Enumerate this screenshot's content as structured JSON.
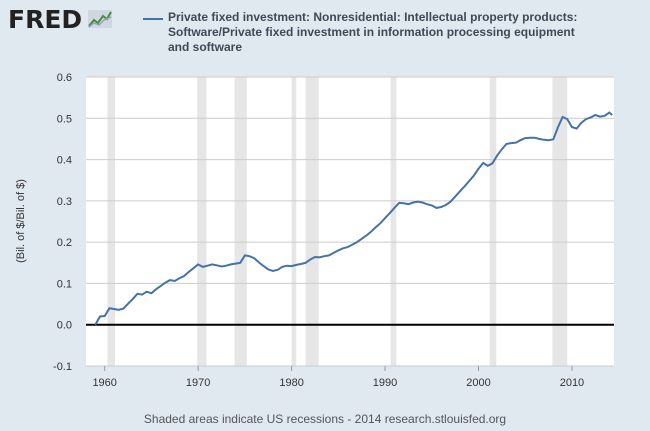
{
  "header": {
    "logo_text": "FRED"
  },
  "footer": {
    "text": "Shaded areas indicate US recessions - 2014 research.stlouisfed.org"
  },
  "colors": {
    "series": "#4572a7",
    "recession": "#e6e6e6",
    "background": "#e1e9f0"
  },
  "chart_data": {
    "type": "line",
    "title": "",
    "xlabel": "",
    "ylabel": "(Bil. of $/Bil. of $)",
    "xlim": [
      1958,
      2014.5
    ],
    "ylim": [
      -0.1,
      0.6
    ],
    "yticks": [
      -0.1,
      0.0,
      0.1,
      0.2,
      0.3,
      0.4,
      0.5,
      0.6
    ],
    "ytick_labels": [
      "-0.1",
      "0.0",
      "0.1",
      "0.2",
      "0.3",
      "0.4",
      "0.5",
      "0.6"
    ],
    "xticks": [
      1960,
      1970,
      1980,
      1990,
      2000,
      2010
    ],
    "xtick_labels": [
      "1960",
      "1970",
      "1980",
      "1990",
      "2000",
      "2010"
    ],
    "grid": true,
    "zero_line": true,
    "legend_position": "top",
    "recessions": [
      [
        1960.3,
        1961.1
      ],
      [
        1969.9,
        1970.9
      ],
      [
        1973.9,
        1975.2
      ],
      [
        1980.0,
        1980.5
      ],
      [
        1981.5,
        1982.9
      ],
      [
        1990.6,
        1991.2
      ],
      [
        2001.2,
        2001.9
      ],
      [
        2007.9,
        2009.5
      ]
    ],
    "series": [
      {
        "name": "Private fixed investment: Nonresidential: Intellectual property products: Software/Private fixed investment in information processing equipment and software",
        "x": [
          1959.0,
          1959.5,
          1960.0,
          1960.5,
          1961.0,
          1961.5,
          1962.0,
          1962.5,
          1963.0,
          1963.5,
          1964.0,
          1964.5,
          1965.0,
          1965.5,
          1966.0,
          1966.5,
          1967.0,
          1967.5,
          1968.0,
          1968.5,
          1969.0,
          1969.5,
          1970.0,
          1970.5,
          1971.0,
          1971.5,
          1972.0,
          1972.5,
          1973.0,
          1973.5,
          1974.0,
          1974.5,
          1975.0,
          1975.5,
          1976.0,
          1976.5,
          1977.0,
          1977.5,
          1978.0,
          1978.5,
          1979.0,
          1979.5,
          1980.0,
          1980.5,
          1981.0,
          1981.5,
          1982.0,
          1982.5,
          1983.0,
          1983.5,
          1984.0,
          1984.5,
          1985.0,
          1985.5,
          1986.0,
          1986.5,
          1987.0,
          1987.5,
          1988.0,
          1988.5,
          1989.0,
          1989.5,
          1990.0,
          1990.5,
          1991.0,
          1991.5,
          1992.0,
          1992.5,
          1993.0,
          1993.5,
          1994.0,
          1994.5,
          1995.0,
          1995.5,
          1996.0,
          1996.5,
          1997.0,
          1997.5,
          1998.0,
          1998.5,
          1999.0,
          1999.5,
          2000.0,
          2000.5,
          2001.0,
          2001.5,
          2002.0,
          2002.5,
          2003.0,
          2003.5,
          2004.0,
          2004.5,
          2005.0,
          2005.5,
          2006.0,
          2006.5,
          2007.0,
          2007.5,
          2008.0,
          2008.5,
          2009.0,
          2009.5,
          2010.0,
          2010.5,
          2011.0,
          2011.5,
          2012.0,
          2012.5,
          2013.0,
          2013.5,
          2014.0,
          2014.3
        ],
        "values": [
          0.0,
          0.02,
          0.021,
          0.04,
          0.038,
          0.036,
          0.039,
          0.051,
          0.062,
          0.075,
          0.073,
          0.08,
          0.076,
          0.086,
          0.094,
          0.102,
          0.108,
          0.106,
          0.113,
          0.118,
          0.128,
          0.137,
          0.146,
          0.14,
          0.143,
          0.146,
          0.144,
          0.141,
          0.143,
          0.146,
          0.148,
          0.15,
          0.168,
          0.166,
          0.161,
          0.151,
          0.142,
          0.134,
          0.13,
          0.133,
          0.14,
          0.143,
          0.142,
          0.145,
          0.147,
          0.15,
          0.158,
          0.164,
          0.163,
          0.166,
          0.168,
          0.174,
          0.18,
          0.185,
          0.188,
          0.194,
          0.2,
          0.208,
          0.216,
          0.225,
          0.236,
          0.246,
          0.258,
          0.27,
          0.283,
          0.295,
          0.294,
          0.292,
          0.296,
          0.298,
          0.296,
          0.292,
          0.289,
          0.283,
          0.285,
          0.29,
          0.298,
          0.31,
          0.323,
          0.335,
          0.348,
          0.361,
          0.378,
          0.392,
          0.385,
          0.391,
          0.41,
          0.425,
          0.438,
          0.44,
          0.441,
          0.447,
          0.452,
          0.453,
          0.453,
          0.45,
          0.448,
          0.447,
          0.449,
          0.478,
          0.503,
          0.498,
          0.479,
          0.475,
          0.489,
          0.498,
          0.502,
          0.508,
          0.504,
          0.506,
          0.514,
          0.508
        ]
      }
    ]
  }
}
